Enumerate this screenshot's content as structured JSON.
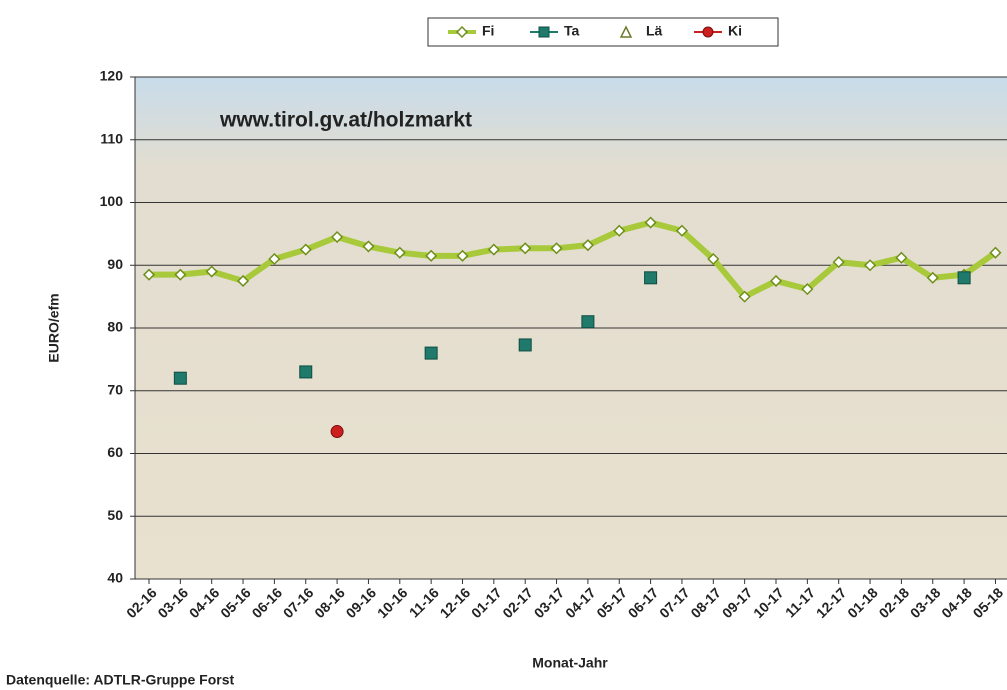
{
  "chart_data": {
    "type": "line",
    "annotation": "www.tirol.gv.at/holzmarkt",
    "x_label": "Monat-Jahr",
    "y_label": "EURO/efm",
    "source": "Datenquelle: ADTLR-Gruppe Forst",
    "categories": [
      "02-16",
      "03-16",
      "04-16",
      "05-16",
      "06-16",
      "07-16",
      "08-16",
      "09-16",
      "10-16",
      "11-16",
      "12-16",
      "01-17",
      "02-17",
      "03-17",
      "04-17",
      "05-17",
      "06-17",
      "07-17",
      "08-17",
      "09-17",
      "10-17",
      "11-17",
      "12-17",
      "01-18",
      "02-18",
      "03-18",
      "04-18",
      "05-18"
    ],
    "series": [
      {
        "name": "Fi",
        "color": "#a8c93a",
        "marker": "diamond",
        "values": [
          88.5,
          88.5,
          89,
          87.5,
          91,
          92.5,
          94.5,
          93,
          92,
          91.5,
          91.5,
          92.5,
          92.7,
          92.7,
          93.2,
          95.5,
          96.8,
          95.5,
          91,
          85,
          87.5,
          86.2,
          90.5,
          90,
          91.2,
          88,
          88.5,
          92
        ]
      },
      {
        "name": "Ta",
        "color": "#1f7a6b",
        "marker": "square",
        "values": [
          null,
          72,
          null,
          null,
          null,
          73,
          null,
          null,
          null,
          76,
          null,
          null,
          77.3,
          null,
          81,
          null,
          88,
          null,
          null,
          null,
          null,
          null,
          null,
          null,
          null,
          null,
          88,
          null
        ]
      },
      {
        "name": "Lä",
        "color": "#6b7a2a",
        "marker": "triangle",
        "values": [
          null,
          null,
          null,
          null,
          null,
          null,
          null,
          null,
          null,
          null,
          null,
          null,
          null,
          null,
          null,
          null,
          null,
          null,
          null,
          null,
          null,
          null,
          null,
          null,
          null,
          null,
          null,
          null
        ]
      },
      {
        "name": "Ki",
        "color": "#cc1f1f",
        "marker": "circle",
        "values": [
          null,
          null,
          null,
          null,
          null,
          null,
          63.5,
          null,
          null,
          null,
          null,
          null,
          null,
          null,
          null,
          null,
          null,
          null,
          null,
          null,
          null,
          null,
          null,
          null,
          null,
          null,
          null,
          null
        ]
      }
    ],
    "ylim": [
      40,
      120
    ],
    "yticks": [
      40,
      50,
      60,
      70,
      80,
      90,
      100,
      110,
      120
    ],
    "grid": true,
    "legend": "top"
  }
}
